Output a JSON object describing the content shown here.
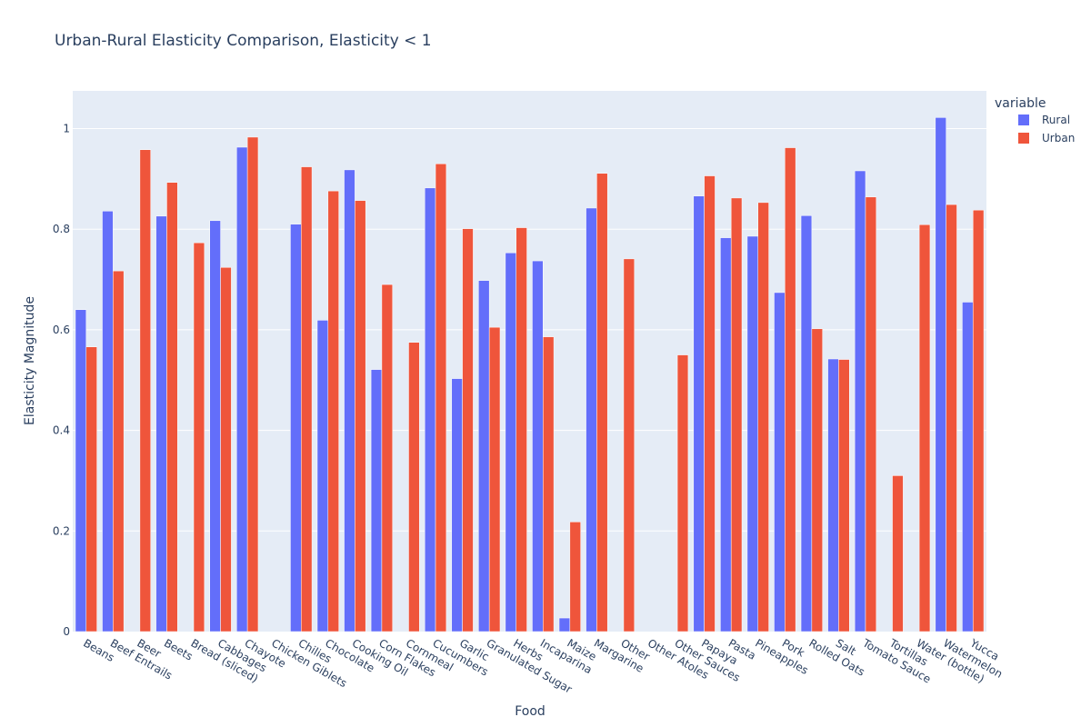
{
  "chart_data": {
    "type": "bar",
    "title": "Urban-Rural Elasticity Comparison, Elasticity < 1",
    "xlabel": "Food",
    "ylabel": "Elasticity Magnitude",
    "ylim": [
      0,
      1.075
    ],
    "yticks": [
      0,
      0.2,
      0.4,
      0.6,
      0.8,
      1
    ],
    "ytick_labels": [
      "0",
      "0.2",
      "0.4",
      "0.6",
      "0.8",
      "1"
    ],
    "grid": true,
    "legend": {
      "title": "variable",
      "placement": "top-right"
    },
    "categories": [
      "Beans",
      "Beef Entrails",
      "Beer",
      "Beets",
      "Bread (sliced)",
      "Cabbages",
      "Chayote",
      "Chicken Giblets",
      "Chilies",
      "Chocolate",
      "Cooking Oil",
      "Corn Flakes",
      "Cornmeal",
      "Cucumbers",
      "Garlic",
      "Granulated Sugar",
      "Herbs",
      "Incaparina",
      "Maize",
      "Margarine",
      "Other",
      "Other Atoles",
      "Other Sauces",
      "Papaya",
      "Pasta",
      "Pineapples",
      "Pork",
      "Rolled Oats",
      "Salt",
      "Tomato Sauce",
      "Tortillas",
      "Water (bottle)",
      "Watermelon",
      "Yucca"
    ],
    "series": [
      {
        "name": "Rural",
        "color": "#636efa",
        "values": [
          0.64,
          0.836,
          null,
          0.826,
          null,
          0.817,
          0.963,
          null,
          0.81,
          0.619,
          0.918,
          0.521,
          null,
          0.882,
          0.503,
          0.698,
          0.753,
          0.737,
          0.027,
          0.842,
          null,
          null,
          null,
          0.866,
          0.783,
          0.786,
          0.674,
          0.827,
          0.542,
          0.916,
          null,
          null,
          1.022,
          0.655
        ]
      },
      {
        "name": "Urban",
        "color": "#ef553b",
        "values": [
          0.566,
          0.717,
          0.958,
          0.893,
          0.773,
          0.724,
          0.983,
          null,
          0.924,
          0.876,
          0.857,
          0.69,
          0.575,
          0.93,
          0.801,
          0.605,
          0.803,
          0.586,
          0.218,
          0.911,
          0.741,
          null,
          0.55,
          0.906,
          0.862,
          0.853,
          0.962,
          0.602,
          0.541,
          0.864,
          0.31,
          0.809,
          0.849,
          0.838
        ]
      }
    ]
  }
}
